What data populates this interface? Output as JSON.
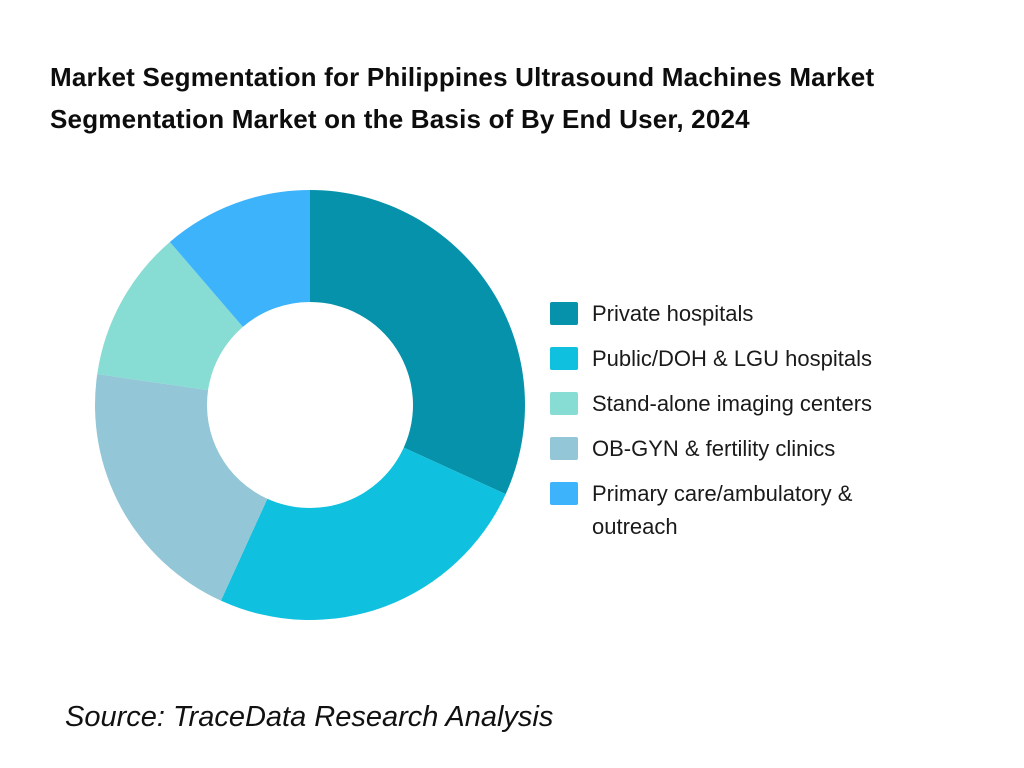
{
  "title": {
    "text": "Market Segmentation for Philippines Ultrasound Machines Market Segmentation Market on the Basis of By End User, 2024",
    "lines": [
      "Market Segmentation for Philippines Ultrasound Machines Market",
      "Segmentation Market on the Basis of By End User, 2024"
    ]
  },
  "source": {
    "text": "Source: TraceData Research Analysis"
  },
  "chart_data": {
    "type": "pie",
    "subtype": "donut",
    "title": "Market Segmentation for Philippines Ultrasound Machines Market Segmentation Market on the Basis of By End User, 2024",
    "legend_position": "right",
    "start_angle_deg": 0,
    "direction": "clockwise",
    "sort_for_drawing": "descending",
    "inner_radius_ratio": 0.48,
    "data_labels_shown": false,
    "units": "percent (estimated from arc angles)",
    "segments": [
      {
        "label": "Private hospitals",
        "value": 31.8,
        "color": "#0592AA"
      },
      {
        "label": "Public/DOH & LGU hospitals",
        "value": 25.0,
        "color": "#0FC1DF"
      },
      {
        "label": "Stand-alone imaging centers",
        "value": 11.4,
        "color": "#87DCD4"
      },
      {
        "label": "OB-GYN & fertility clinics",
        "value": 20.5,
        "color": "#93C7D7"
      },
      {
        "label": "Primary care/ambulatory & outreach",
        "value": 11.3,
        "color": "#3CB3FB"
      }
    ],
    "background_color": "#ffffff"
  }
}
